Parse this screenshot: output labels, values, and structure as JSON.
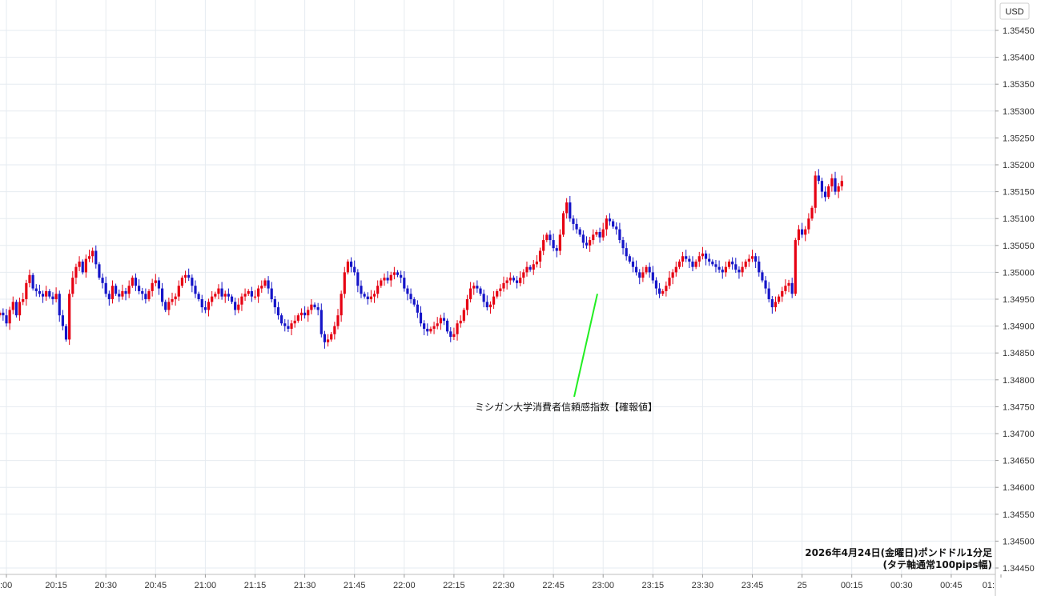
{
  "chart_data": {
    "type": "candlestick",
    "currency_label": "USD",
    "y_ticks": [
      "1.35450",
      "1.35400",
      "1.35350",
      "1.35300",
      "1.35250",
      "1.35200",
      "1.35150",
      "1.35100",
      "1.35050",
      "1.35000",
      "1.34950",
      "1.34900",
      "1.34850",
      "1.34800",
      "1.34750",
      "1.34700",
      "1.34650",
      "1.34600",
      "1.34550",
      "1.34500",
      "1.34450"
    ],
    "ylim": [
      1.3444,
      1.3549
    ],
    "x_ticks": [
      ":00",
      "20:15",
      "20:30",
      "20:45",
      "21:00",
      "21:15",
      "21:30",
      "21:45",
      "22:00",
      "22:15",
      "22:30",
      "22:45",
      "23:00",
      "23:15",
      "23:30",
      "23:45",
      "25",
      "00:15",
      "00:30",
      "00:45",
      "01:"
    ],
    "annotation": {
      "text": "ミシガン大学消費者信頼感指数【確報値】",
      "target_time": "23:00",
      "target_price": 1.3496
    },
    "note_line1": "2026年4月24日(金曜日)ポンドドル1分足",
    "note_line2": "(タテ軸通常100pips幅)",
    "colors": {
      "up": "#e60012",
      "down": "#1515c8",
      "grid": "#e6ebf0",
      "annotation_line": "#22ee22"
    },
    "close_series_1min_from_19:58": [
      1.34925,
      1.3492,
      1.34905,
      1.3493,
      1.34945,
      1.3492,
      1.34945,
      1.3495,
      1.3498,
      1.34995,
      1.3497,
      1.34965,
      1.3496,
      1.34955,
      1.34965,
      1.34955,
      1.3495,
      1.3496,
      1.3492,
      1.349,
      1.34875,
      1.3496,
      1.3499,
      1.3501,
      1.3502,
      1.35,
      1.35025,
      1.3503,
      1.3504,
      1.35015,
      1.3499,
      1.3498,
      1.3496,
      1.3495,
      1.34975,
      1.3496,
      1.34955,
      1.34965,
      1.3496,
      1.34975,
      1.3499,
      1.34975,
      1.34965,
      1.3496,
      1.3495,
      1.34965,
      1.3498,
      1.34985,
      1.3497,
      1.34945,
      1.3493,
      1.34945,
      1.3495,
      1.34955,
      1.34975,
      1.3499,
      1.34995,
      1.3499,
      1.34975,
      1.3496,
      1.3495,
      1.34935,
      1.3493,
      1.34945,
      1.34955,
      1.3496,
      1.3497,
      1.34955,
      1.3496,
      1.34955,
      1.34945,
      1.3493,
      1.3494,
      1.34955,
      1.3496,
      1.34965,
      1.34955,
      1.34955,
      1.3497,
      1.34975,
      1.34985,
      1.3497,
      1.3495,
      1.34935,
      1.3492,
      1.34905,
      1.349,
      1.34895,
      1.34905,
      1.3491,
      1.3492,
      1.34925,
      1.3492,
      1.3493,
      1.3494,
      1.34935,
      1.3493,
      1.34885,
      1.3487,
      1.34875,
      1.34885,
      1.349,
      1.3492,
      1.3496,
      1.35,
      1.3502,
      1.3501,
      1.35,
      1.34975,
      1.3496,
      1.34955,
      1.3495,
      1.34955,
      1.3496,
      1.34975,
      1.34985,
      1.3499,
      1.34985,
      1.34995,
      1.35,
      1.34995,
      1.3499,
      1.3497,
      1.3496,
      1.3495,
      1.3494,
      1.34925,
      1.34905,
      1.34895,
      1.3489,
      1.34895,
      1.349,
      1.34905,
      1.34915,
      1.3491,
      1.3489,
      1.3488,
      1.34885,
      1.34905,
      1.3491,
      1.3493,
      1.3495,
      1.3497,
      1.34975,
      1.3497,
      1.3496,
      1.34945,
      1.34935,
      1.3494,
      1.34955,
      1.34965,
      1.3497,
      1.3498,
      1.34985,
      1.3499,
      1.34985,
      1.3498,
      1.3499,
      1.35,
      1.3501,
      1.35005,
      1.35015,
      1.3502,
      1.3504,
      1.3506,
      1.3507,
      1.3506,
      1.35045,
      1.3504,
      1.3507,
      1.3511,
      1.3513,
      1.351,
      1.3509,
      1.3508,
      1.3507,
      1.35055,
      1.3505,
      1.3506,
      1.3507,
      1.35075,
      1.35065,
      1.3508,
      1.351,
      1.35095,
      1.35085,
      1.3508,
      1.3506,
      1.35045,
      1.3503,
      1.3502,
      1.3501,
      1.35,
      1.3499,
      1.35,
      1.3501,
      1.35,
      1.34985,
      1.3497,
      1.3496,
      1.34965,
      1.34975,
      1.3499,
      1.35,
      1.3501,
      1.3502,
      1.3503,
      1.35025,
      1.3502,
      1.3501,
      1.3502,
      1.3503,
      1.35035,
      1.35025,
      1.3502,
      1.35015,
      1.3501,
      1.35005,
      1.35,
      1.3501,
      1.3502,
      1.35015,
      1.35005,
      1.35,
      1.3501,
      1.3502,
      1.35025,
      1.3503,
      1.3502,
      1.35,
      1.34985,
      1.3497,
      1.3495,
      1.34935,
      1.34945,
      1.34955,
      1.34965,
      1.34975,
      1.3498,
      1.3496,
      1.3506,
      1.3508,
      1.3507,
      1.3508,
      1.351,
      1.3512,
      1.3518,
      1.3517,
      1.3515,
      1.3514,
      1.3516,
      1.35175,
      1.3515,
      1.3516,
      1.3517
    ]
  }
}
